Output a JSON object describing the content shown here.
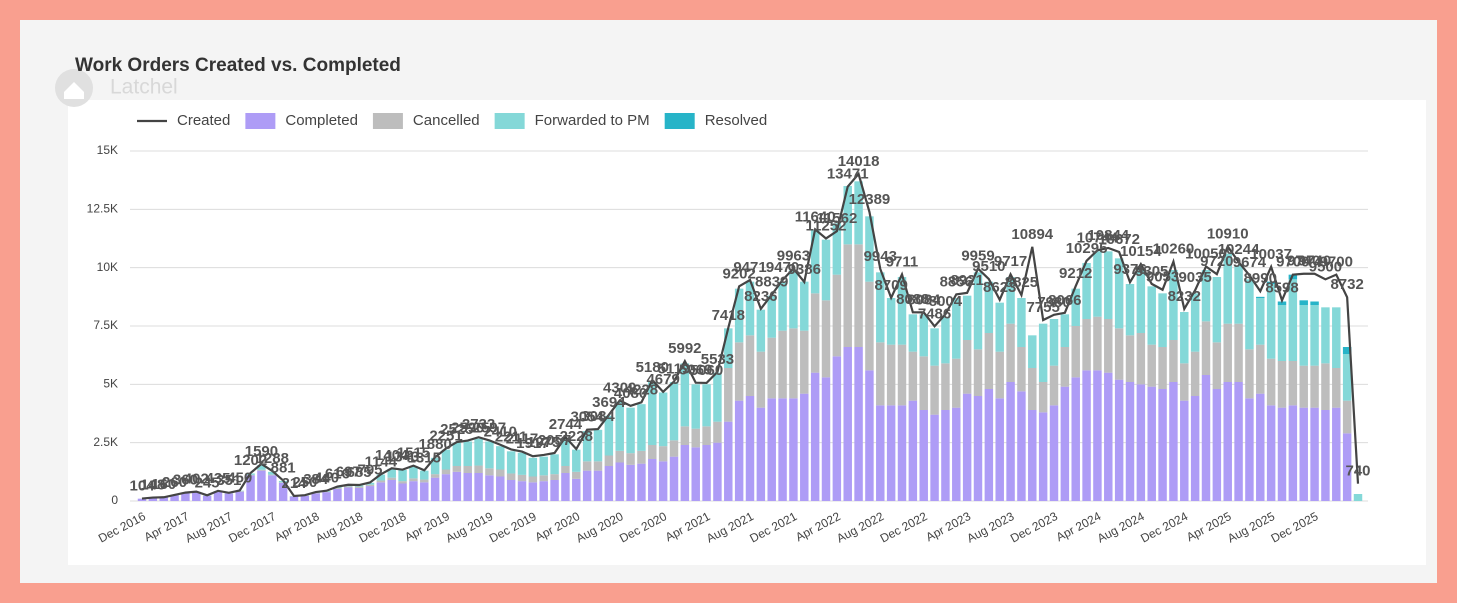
{
  "logo_text": "Latchel",
  "chart_data": {
    "type": "bar",
    "stacked": true,
    "title": "Work Orders Created vs. Completed",
    "categories": [
      "Dec 2016",
      null,
      null,
      null,
      "Apr 2017",
      null,
      null,
      null,
      "Aug 2017",
      null,
      null,
      null,
      "Dec 2017",
      null,
      null,
      null,
      "Apr 2018",
      null,
      null,
      null,
      "Aug 2018",
      null,
      null,
      null,
      "Dec 2018",
      null,
      null,
      null,
      "Apr 2019",
      null,
      null,
      null,
      "Aug 2019",
      null,
      null,
      null,
      "Dec 2019",
      null,
      null,
      null,
      "Apr 2020",
      null,
      null,
      null,
      "Aug 2020",
      null,
      null,
      null,
      "Dec 2020",
      null,
      null,
      null,
      "Apr 2021",
      null,
      null,
      null,
      "Aug 2021",
      null,
      null,
      null,
      "Dec 2021",
      null,
      null,
      null,
      "Apr 2022",
      null,
      null,
      null,
      "Aug 2022",
      null,
      null,
      null,
      "Dec 2022",
      null,
      null,
      null,
      "Apr 2023",
      null,
      null,
      null,
      "Aug 2023",
      null,
      null,
      null,
      "Dec 2023",
      null,
      null,
      null,
      "Apr 2024",
      null,
      null,
      null,
      "Aug 2024",
      null,
      null,
      null,
      "Dec 2024",
      null,
      null,
      null,
      "Apr 2025",
      null,
      null,
      null,
      "Aug 2025",
      null,
      null,
      null,
      "Dec 2025",
      null,
      null,
      null,
      null
    ],
    "series": [
      {
        "name": "Created",
        "type": "line",
        "color": "#444444",
        "data_labels": true,
        "values": [
          104,
          148,
          160,
          260,
          360,
          402,
          245,
          435,
          351,
          450,
          1202,
          1590,
          1288,
          881,
          214,
          250,
          384,
          440,
          616,
          697,
          685,
          795,
          1144,
          1404,
          1343,
          1515,
          1315,
          1880,
          2251,
          2525,
          2590,
          2733,
          2597,
          2410,
          2211,
          2117,
          1917,
          1975,
          2057,
          2744,
          2228,
          3054,
          3084,
          3694,
          4309,
          4080,
          4228,
          5180,
          4679,
          5119,
          5992,
          5069,
          5060,
          5533,
          7418,
          9202,
          9471,
          8236,
          8839,
          9470,
          9963,
          9386,
          11640,
          11252,
          11562,
          13471,
          14018,
          12389,
          9943,
          8709,
          9711,
          8088,
          8084,
          7486,
          8004,
          8856,
          8921,
          9959,
          9510,
          8623,
          9717,
          8825,
          10894,
          7755,
          7980,
          8066,
          9212,
          10295,
          10744,
          10844,
          10672,
          9376,
          10154,
          9305,
          9053,
          10260,
          8232,
          9035,
          10050,
          9720,
          10910,
          10244,
          9674,
          8990,
          10037,
          8598,
          9700,
          9740,
          9740,
          9500,
          9700,
          8732,
          740
        ]
      },
      {
        "name": "Completed",
        "type": "bar",
        "color": "#ae9cf6",
        "values": [
          100,
          140,
          150,
          240,
          330,
          370,
          220,
          400,
          320,
          400,
          1100,
          1300,
          1100,
          780,
          190,
          220,
          330,
          380,
          520,
          580,
          560,
          640,
          800,
          900,
          750,
          850,
          800,
          1000,
          1150,
          1250,
          1200,
          1200,
          1100,
          1050,
          900,
          850,
          800,
          850,
          900,
          1200,
          950,
          1300,
          1300,
          1500,
          1650,
          1550,
          1600,
          1800,
          1700,
          1900,
          2400,
          2300,
          2400,
          2500,
          3400,
          4300,
          4500,
          4000,
          4400,
          4400,
          4400,
          4600,
          5500,
          5300,
          6200,
          6600,
          6600,
          5600,
          4100,
          4100,
          4100,
          4300,
          3900,
          3700,
          3900,
          4000,
          4600,
          4500,
          4800,
          4400,
          5100,
          4700,
          3900,
          3800,
          4100,
          4900,
          5300,
          5600,
          5600,
          5500,
          5200,
          5100,
          5000,
          4900,
          4800,
          5100,
          4300,
          4500,
          5400,
          4800,
          5100,
          5100,
          4400,
          4600,
          4100,
          4000,
          4100,
          4000,
          4000,
          3900,
          4000,
          2900,
          0
        ]
      },
      {
        "name": "Cancelled",
        "type": "bar",
        "color": "#bdbdbd",
        "values": [
          0,
          0,
          0,
          0,
          10,
          10,
          10,
          10,
          10,
          20,
          20,
          40,
          30,
          20,
          10,
          10,
          20,
          20,
          40,
          50,
          60,
          60,
          80,
          100,
          100,
          120,
          120,
          150,
          200,
          250,
          300,
          320,
          300,
          300,
          280,
          270,
          250,
          250,
          250,
          300,
          300,
          400,
          400,
          450,
          500,
          500,
          550,
          600,
          650,
          700,
          800,
          800,
          800,
          900,
          2300,
          2500,
          2600,
          2400,
          2600,
          2900,
          3000,
          2700,
          3400,
          3300,
          3500,
          4400,
          4400,
          3800,
          2700,
          2600,
          2600,
          2100,
          2300,
          2100,
          2000,
          2100,
          2300,
          2000,
          2400,
          2000,
          2500,
          1900,
          1800,
          1300,
          1700,
          1700,
          2200,
          2200,
          2300,
          2300,
          2200,
          2000,
          2200,
          1800,
          1800,
          1800,
          1600,
          1900,
          2300,
          2000,
          2500,
          2500,
          2100,
          2100,
          2000,
          2000,
          1900,
          1800,
          1800,
          2000,
          1700,
          1400,
          0
        ]
      },
      {
        "name": "Forwarded to PM",
        "type": "bar",
        "color": "#84d8d8",
        "values": [
          0,
          0,
          0,
          10,
          10,
          10,
          10,
          10,
          10,
          20,
          60,
          200,
          120,
          60,
          10,
          10,
          20,
          30,
          40,
          50,
          50,
          80,
          250,
          380,
          480,
          520,
          380,
          700,
          850,
          1000,
          1050,
          1150,
          1150,
          1000,
          950,
          950,
          800,
          800,
          850,
          1200,
          950,
          1300,
          1350,
          1700,
          2100,
          1950,
          2000,
          2700,
          2300,
          2500,
          2700,
          1900,
          1800,
          2100,
          1700,
          2300,
          2300,
          1800,
          1800,
          2100,
          2500,
          2100,
          2700,
          2600,
          2200,
          2500,
          2700,
          2800,
          3000,
          2000,
          2900,
          1600,
          1800,
          1600,
          2000,
          2600,
          1900,
          3300,
          2200,
          2100,
          2000,
          2100,
          1400,
          2500,
          2000,
          1400,
          1600,
          2400,
          2800,
          2900,
          3000,
          2200,
          2800,
          2500,
          2300,
          3000,
          2200,
          2500,
          2200,
          2800,
          3000,
          2500,
          3000,
          2000,
          3200,
          2400,
          3500,
          2600,
          2600,
          2400,
          2600,
          2000,
          300
        ]
      },
      {
        "name": "Resolved",
        "type": "bar",
        "color": "#27b4c8",
        "values": [
          0,
          0,
          0,
          0,
          0,
          0,
          0,
          0,
          0,
          0,
          0,
          0,
          0,
          0,
          0,
          0,
          0,
          0,
          0,
          0,
          0,
          0,
          0,
          0,
          0,
          0,
          0,
          0,
          0,
          0,
          0,
          0,
          0,
          0,
          0,
          0,
          0,
          0,
          0,
          0,
          0,
          0,
          0,
          0,
          0,
          0,
          0,
          0,
          0,
          0,
          0,
          0,
          0,
          0,
          0,
          0,
          0,
          0,
          0,
          0,
          0,
          0,
          0,
          0,
          0,
          0,
          0,
          0,
          0,
          0,
          0,
          0,
          0,
          0,
          0,
          0,
          0,
          0,
          0,
          0,
          0,
          0,
          0,
          0,
          0,
          0,
          0,
          0,
          0,
          0,
          0,
          0,
          0,
          0,
          0,
          0,
          0,
          0,
          0,
          0,
          0,
          0,
          0,
          50,
          100,
          150,
          200,
          200,
          150,
          0,
          0,
          300,
          0
        ]
      }
    ],
    "ylim": [
      0,
      15000
    ],
    "yticks": [
      0,
      {
        "value": 2500,
        "label": "2.5K"
      },
      {
        "value": 5000,
        "label": "5K"
      },
      {
        "value": 7500,
        "label": "7.5K"
      },
      {
        "value": 10000,
        "label": "10K"
      },
      {
        "value": 12500,
        "label": "12.5K"
      },
      {
        "value": 15000,
        "label": "15K"
      }
    ],
    "grid": true,
    "legend": "top-left"
  }
}
